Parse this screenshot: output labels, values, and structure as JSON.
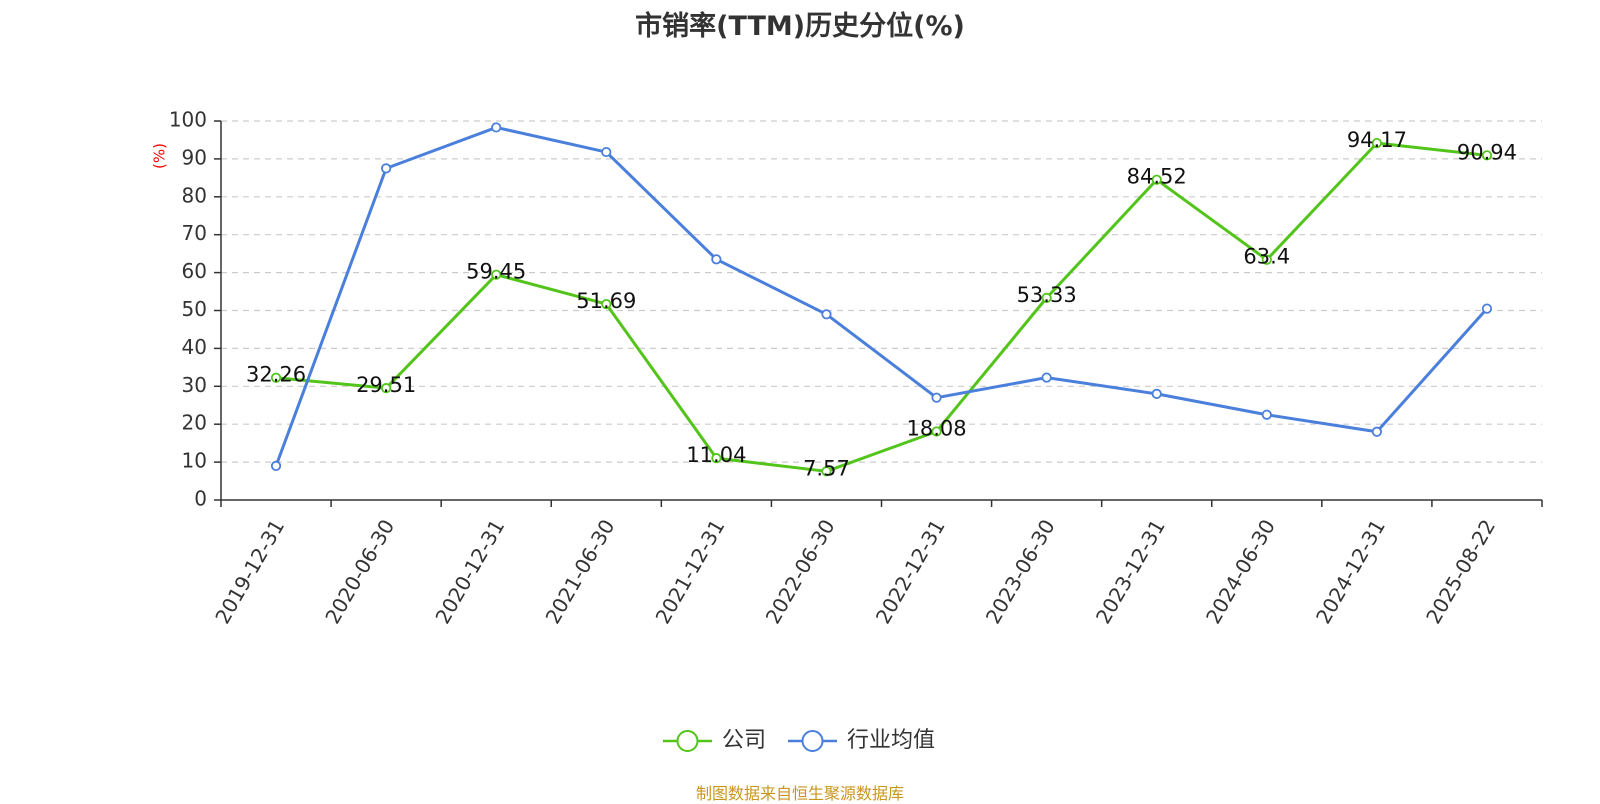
{
  "chart_data": {
    "type": "line",
    "title": "市销率(TTM)历史分位(%)",
    "ylabel": "(%)",
    "xlabel": "",
    "ylim": [
      0,
      100
    ],
    "yticks": [
      0,
      10,
      20,
      30,
      40,
      50,
      60,
      70,
      80,
      90,
      100
    ],
    "grid": true,
    "legend_position": "bottom-center",
    "categories": [
      "2019-12-31",
      "2020-06-30",
      "2020-12-31",
      "2021-06-30",
      "2021-12-31",
      "2022-06-30",
      "2022-12-31",
      "2023-06-30",
      "2023-12-31",
      "2024-06-30",
      "2024-12-31",
      "2025-08-22"
    ],
    "series": [
      {
        "name": "公司",
        "color": "#52c41a",
        "show_labels": true,
        "values": [
          32.26,
          29.51,
          59.45,
          51.69,
          11.04,
          7.57,
          18.08,
          53.33,
          84.52,
          63.4,
          94.17,
          90.94
        ]
      },
      {
        "name": "行业均值",
        "color": "#4a7fdc",
        "show_labels": false,
        "values": [
          9,
          87.5,
          98.3,
          91.8,
          63.5,
          49,
          27,
          32.3,
          28,
          22.5,
          18,
          50.5
        ]
      }
    ],
    "source_note": "制图数据来自恒生聚源数据库"
  }
}
